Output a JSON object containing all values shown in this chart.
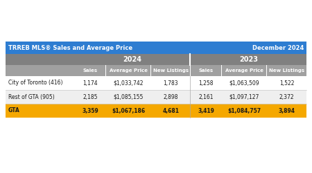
{
  "title_left": "TRREB MLS® Sales and Average Price",
  "title_right": "December 2024",
  "title_bg": "#2E7DD1",
  "title_text_color": "#FFFFFF",
  "header1_bg": "#808080",
  "header2_bg": "#A0A0A0",
  "header_text_color": "#FFFFFF",
  "year_labels": [
    "2024",
    "2023"
  ],
  "col_headers": [
    "Sales",
    "Average Price",
    "New Listings",
    "Sales",
    "Average Price",
    "New Listings"
  ],
  "rows": [
    {
      "label": "City of Toronto (416)",
      "values": [
        "1,174",
        "$1,033,742",
        "1,783",
        "1,258",
        "$1,063,509",
        "1,522"
      ],
      "bg": "#FFFFFF",
      "bold": false
    },
    {
      "label": "Rest of GTA (905)",
      "values": [
        "2,185",
        "$1,085,155",
        "2,898",
        "2,161",
        "$1,097,127",
        "2,372"
      ],
      "bg": "#EFEFEF",
      "bold": false
    },
    {
      "label": "GTA",
      "values": [
        "3,359",
        "$1,067,186",
        "4,681",
        "3,419",
        "$1,084,757",
        "3,894"
      ],
      "bg": "#F5A800",
      "bold": true
    }
  ],
  "row_text_color": "#1A1A1A",
  "outer_bg": "#FFFFFF",
  "fig_width": 4.5,
  "fig_height": 2.5,
  "dpi": 100
}
